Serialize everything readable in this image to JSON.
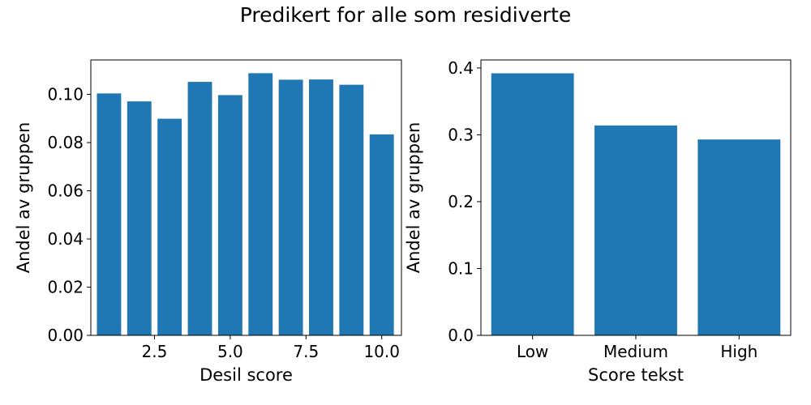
{
  "figure": {
    "suptitle": "Predikert for alle som residiverte"
  },
  "chart_data": [
    {
      "type": "bar",
      "x": [
        1,
        2,
        3,
        4,
        5,
        6,
        7,
        8,
        9,
        10
      ],
      "values": [
        0.1004,
        0.0971,
        0.0899,
        0.1052,
        0.0997,
        0.1088,
        0.1061,
        0.1062,
        0.104,
        0.0834
      ],
      "xlabel": "Desil score",
      "ylabel": "Andel av gruppen",
      "xlim": [
        0.4,
        10.65
      ],
      "ylim": [
        0,
        0.1143
      ],
      "xticks": [
        2.5,
        5.0,
        7.5,
        10.0
      ],
      "xtick_labels": [
        "2.5",
        "5.0",
        "7.5",
        "10.0"
      ],
      "yticks": [
        0,
        0.02,
        0.04,
        0.06,
        0.08,
        0.1
      ],
      "ytick_labels": [
        "0.00",
        "0.02",
        "0.04",
        "0.06",
        "0.08",
        "0.10"
      ],
      "bar_width": 0.8,
      "grid": false,
      "color": "#1f77b4"
    },
    {
      "type": "bar",
      "categories": [
        "Low",
        "Medium",
        "High"
      ],
      "values": [
        0.392,
        0.314,
        0.293
      ],
      "xlabel": "Score tekst",
      "ylabel": "Andel av gruppen",
      "xlim": [
        -0.5,
        2.5
      ],
      "ylim": [
        0,
        0.412
      ],
      "yticks": [
        0,
        0.1,
        0.2,
        0.3,
        0.4
      ],
      "ytick_labels": [
        "0.0",
        "0.1",
        "0.2",
        "0.3",
        "0.4"
      ],
      "bar_width": 0.8,
      "grid": false,
      "color": "#1f77b4"
    }
  ]
}
